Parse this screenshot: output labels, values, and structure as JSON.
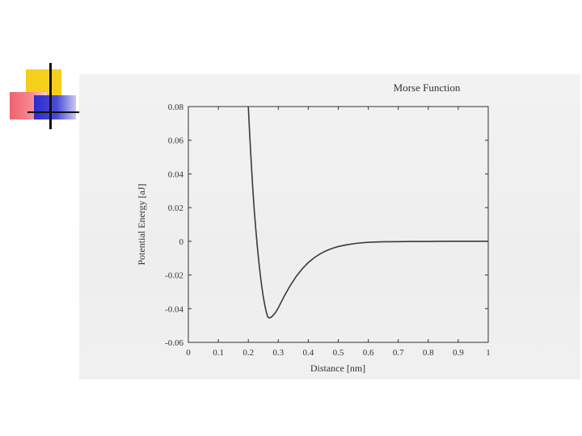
{
  "colors": {
    "accent_yellow": "#f5cf1c",
    "accent_red": "#f0626e",
    "accent_blue": "#2c2ccc",
    "curve": "#3a3a3a",
    "axes": "#333333",
    "scan_background": "#efefef"
  },
  "chart_data": {
    "type": "line",
    "title": "Morse Function",
    "xlabel": "Distance [nm]",
    "ylabel": "Potential Energy [aJ]",
    "xlim": [
      0,
      1
    ],
    "ylim": [
      -0.06,
      0.08
    ],
    "x_ticks": [
      "0",
      "0.1",
      "0.2",
      "0.3",
      "0.4",
      "0.5",
      "0.6",
      "0.7",
      "0.8",
      "0.9",
      "1"
    ],
    "y_ticks": [
      "-0.06",
      "-0.04",
      "-0.02",
      "0",
      "0.02",
      "0.04",
      "0.06",
      "0.08"
    ],
    "grid": false,
    "legend": "none",
    "series": [
      {
        "x": [
          0.2,
          0.205,
          0.21,
          0.215,
          0.22,
          0.225,
          0.23,
          0.235,
          0.24,
          0.245,
          0.25,
          0.255,
          0.26,
          0.265,
          0.27,
          0.275,
          0.28,
          0.29,
          0.3,
          0.31,
          0.32,
          0.34,
          0.36,
          0.38,
          0.4,
          0.42,
          0.44,
          0.46,
          0.48,
          0.5,
          0.53,
          0.56,
          0.6,
          0.65,
          0.7,
          0.75,
          0.8,
          0.85,
          0.9,
          0.95,
          1.0
        ],
        "y": [
          0.08,
          0.062,
          0.046,
          0.031,
          0.018,
          0.007,
          -0.003,
          -0.012,
          -0.02,
          -0.027,
          -0.033,
          -0.038,
          -0.042,
          -0.045,
          -0.0455,
          -0.0452,
          -0.0445,
          -0.0425,
          -0.0395,
          -0.036,
          -0.0325,
          -0.0262,
          -0.0208,
          -0.0163,
          -0.0126,
          -0.0097,
          -0.0074,
          -0.0056,
          -0.0042,
          -0.0031,
          -0.002,
          -0.0012,
          -0.0006,
          -0.0003,
          -0.0002,
          -0.0001,
          -0.0001,
          0.0,
          0.0,
          0.0,
          0.0
        ]
      }
    ]
  }
}
